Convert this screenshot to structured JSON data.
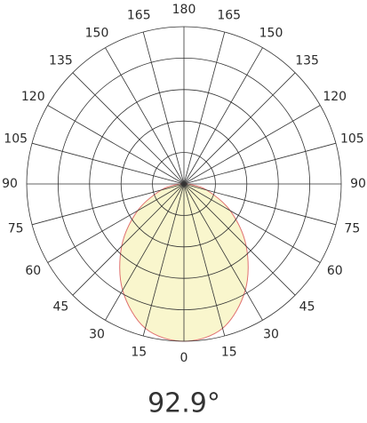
{
  "chart_data": {
    "type": "polar",
    "annotation": "92.9°",
    "rlim": [
      0,
      1
    ],
    "rgrid": [
      0.2,
      0.4,
      0.6,
      0.8,
      1
    ],
    "thetaticks": [
      {
        "value": -165,
        "label": "165"
      },
      {
        "value": -150,
        "label": "150"
      },
      {
        "value": -135,
        "label": "135"
      },
      {
        "value": -120,
        "label": "120"
      },
      {
        "value": -105,
        "label": "105"
      },
      {
        "value": -90,
        "label": "90"
      },
      {
        "value": -75,
        "label": "75"
      },
      {
        "value": -60,
        "label": "60"
      },
      {
        "value": -45,
        "label": "45"
      },
      {
        "value": -30,
        "label": "30"
      },
      {
        "value": -15,
        "label": "15"
      },
      0,
      15,
      30,
      45,
      60,
      75,
      90,
      105,
      120,
      135,
      150,
      165,
      180
    ],
    "series": [
      {
        "color": "#e07070",
        "fill": "#f8f4c4",
        "x": [
          -90,
          -75,
          -60,
          -45,
          -30,
          -15,
          0,
          15,
          30,
          45,
          60,
          75,
          90
        ],
        "values": [
          0.03,
          0.15,
          0.34,
          0.56,
          0.78,
          0.95,
          1,
          0.95,
          0.78,
          0.56,
          0.34,
          0.15,
          0.03
        ]
      }
    ]
  }
}
